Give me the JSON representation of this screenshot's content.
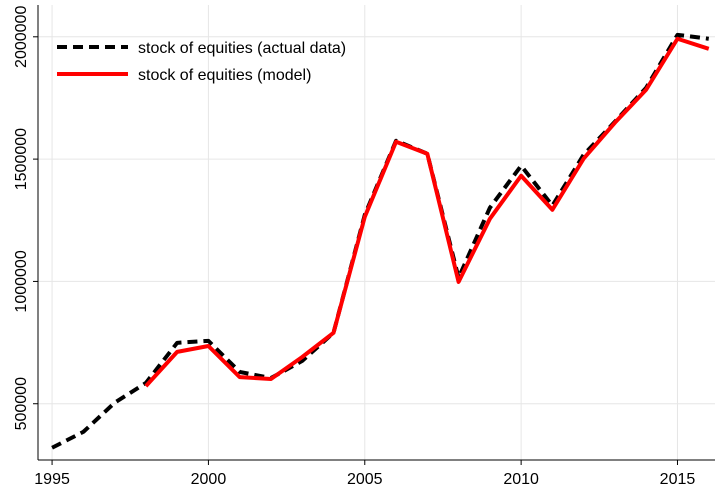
{
  "chart_data": {
    "type": "line",
    "x": [
      1995,
      1996,
      1997,
      1998,
      1999,
      2000,
      2001,
      2002,
      2003,
      2004,
      2005,
      2006,
      2007,
      2008,
      2009,
      2010,
      2011,
      2012,
      2013,
      2014,
      2015,
      2016
    ],
    "series": [
      {
        "name": "stock of equities (actual data)",
        "color": "#000000",
        "dash": true,
        "values": [
          320000,
          385000,
          504000,
          585000,
          749000,
          757000,
          630000,
          605000,
          675000,
          790000,
          1272000,
          1575000,
          1522000,
          1015000,
          1301000,
          1473000,
          1310000,
          1518000,
          1653000,
          1792000,
          2008000,
          1992000
        ]
      },
      {
        "name": "stock of equities (model)",
        "color": "#ff0000",
        "dash": false,
        "values": [
          null,
          null,
          null,
          572000,
          712000,
          736000,
          609000,
          601000,
          691000,
          790000,
          1264000,
          1571000,
          1522000,
          998000,
          1256000,
          1432000,
          1293000,
          1502000,
          1649000,
          1784000,
          1992000,
          1951000
        ]
      }
    ],
    "xlim": [
      1994.55,
      2016.2
    ],
    "xticks": [
      1995,
      2000,
      2005,
      2010,
      2015
    ],
    "ylim": [
      270000,
      2130000
    ],
    "yticks": [
      500000,
      1000000,
      1500000,
      2000000
    ],
    "grid": true,
    "legend_position": "top-left"
  }
}
